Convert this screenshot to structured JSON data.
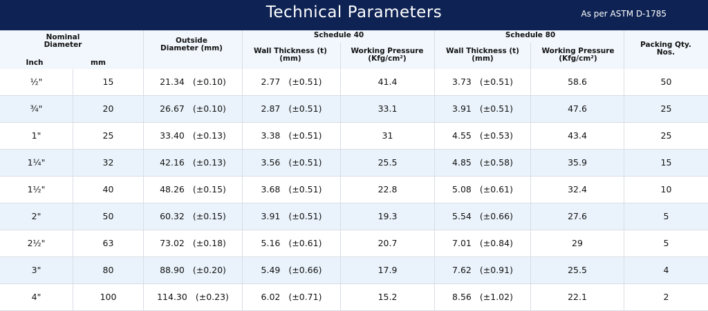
{
  "header": {
    "title": "Technical Parameters",
    "standard": "As per ASTM D-1785"
  },
  "table": {
    "columns": {
      "nominal": "Nominal Diameter",
      "inch": "Inch",
      "mm": "mm",
      "outside": "Outside Diameter (mm)",
      "schedule40": "Schedule 40",
      "schedule80": "Schedule 80",
      "wall40": "Wall Thickness (t) (mm)",
      "pressure40": "Working Pressure (Kfg/cm²)",
      "wall80": "Wall Thickness (t) (mm)",
      "pressure80": "Working Pressure (Kfg/cm²)",
      "packing": "Packing Qty. Nos."
    },
    "rows": [
      [
        "½\"",
        "15",
        "21.34",
        "(±0.10)",
        "2.77",
        "(±0.51)",
        "41.4",
        "3.73",
        "(±0.51)",
        "58.6",
        "50"
      ],
      [
        "¾\"",
        "20",
        "26.67",
        "(±0.10)",
        "2.87",
        "(±0.51)",
        "33.1",
        "3.91",
        "(±0.51)",
        "47.6",
        "25"
      ],
      [
        "1\"",
        "25",
        "33.40",
        "(±0.13)",
        "3.38",
        "(±0.51)",
        "31",
        "4.55",
        "(±0.53)",
        "43.4",
        "25"
      ],
      [
        "1¼\"",
        "32",
        "42.16",
        "(±0.13)",
        "3.56",
        "(±0.51)",
        "25.5",
        "4.85",
        "(±0.58)",
        "35.9",
        "15"
      ],
      [
        "1½\"",
        "40",
        "48.26",
        "(±0.15)",
        "3.68",
        "(±0.51)",
        "22.8",
        "5.08",
        "(±0.61)",
        "32.4",
        "10"
      ],
      [
        "2\"",
        "50",
        "60.32",
        "(±0.15)",
        "3.91",
        "(±0.51)",
        "19.3",
        "5.54",
        "(±0.66)",
        "27.6",
        "5"
      ],
      [
        "2½\"",
        "63",
        "73.02",
        "(±0.18)",
        "5.16",
        "(±0.61)",
        "20.7",
        "7.01",
        "(±0.84)",
        "29",
        "5"
      ],
      [
        "3\"",
        "80",
        "88.90",
        "(±0.20)",
        "5.49",
        "(±0.66)",
        "17.9",
        "7.62",
        "(±0.91)",
        "25.5",
        "4"
      ],
      [
        "4\"",
        "100",
        "114.30",
        "(±0.23)",
        "6.02",
        "(±0.71)",
        "15.2",
        "8.56",
        "(±1.02)",
        "22.1",
        "2"
      ]
    ]
  }
}
